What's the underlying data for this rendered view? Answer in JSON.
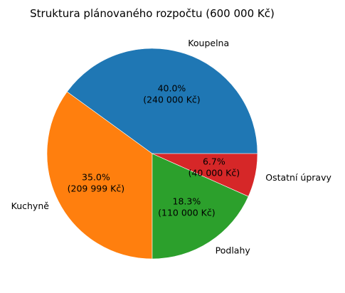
{
  "chart_data": {
    "type": "pie",
    "title": "Struktura plánovaného rozpočtu (600 000 Kč)",
    "categories": [
      "Koupelna",
      "Kuchyně",
      "Podlahy",
      "Ostatní úpravy"
    ],
    "values": [
      240000,
      209999,
      110000,
      40000
    ],
    "percent_labels": [
      "40.0%",
      "35.0%",
      "18.3%",
      "6.7%"
    ],
    "value_labels": [
      "(240 000 Kč)",
      "(209 999 Kč)",
      "(110 000 Kč)",
      "(40 000 Kč)"
    ],
    "colors": [
      "#1f77b4",
      "#ff7f0e",
      "#2ca02c",
      "#d62728"
    ],
    "start_angle_deg": 0,
    "direction": "counterclockwise",
    "legend": "none"
  }
}
